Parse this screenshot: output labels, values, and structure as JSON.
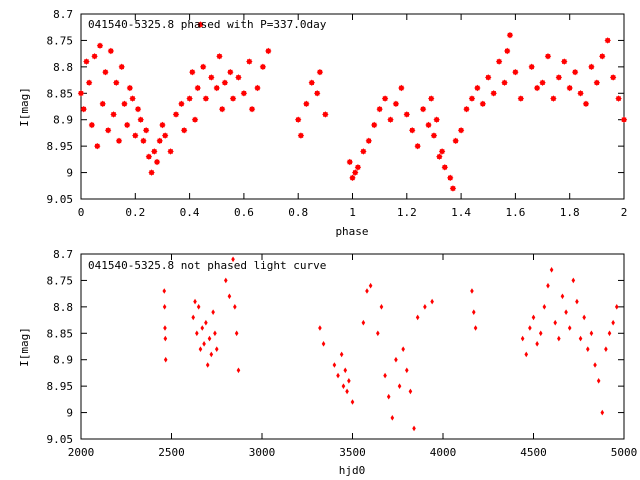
{
  "chart_data": [
    {
      "type": "scatter",
      "title": "041540-5325.8 phased with P=337.0day",
      "xlabel": "phase",
      "ylabel": "I[mag]",
      "xlim": [
        0,
        2
      ],
      "ylim": [
        9.05,
        8.7
      ],
      "y_inverted": true,
      "xticks": [
        "0",
        "0.2",
        "0.4",
        "0.6",
        "0.8",
        "1",
        "1.2",
        "1.4",
        "1.6",
        "1.8",
        "2"
      ],
      "yticks": [
        "8.7",
        "8.75",
        "8.8",
        "8.85",
        "8.9",
        "8.95",
        "9",
        "9.05"
      ],
      "marker": "star",
      "color": "#ff0000",
      "x": [
        0.0,
        0.01,
        0.02,
        0.03,
        0.04,
        0.05,
        0.06,
        0.07,
        0.08,
        0.09,
        0.1,
        0.11,
        0.12,
        0.13,
        0.14,
        0.15,
        0.16,
        0.17,
        0.18,
        0.19,
        0.2,
        0.21,
        0.22,
        0.23,
        0.24,
        0.25,
        0.26,
        0.27,
        0.28,
        0.29,
        0.3,
        0.31,
        0.33,
        0.35,
        0.37,
        0.38,
        0.4,
        0.41,
        0.42,
        0.43,
        0.44,
        0.45,
        0.46,
        0.48,
        0.5,
        0.51,
        0.52,
        0.53,
        0.55,
        0.56,
        0.58,
        0.6,
        0.62,
        0.63,
        0.65,
        0.67,
        0.69,
        0.8,
        0.81,
        0.83,
        0.85,
        0.87,
        0.88,
        0.9,
        0.99,
        1.0,
        1.01,
        1.02,
        1.04,
        1.06,
        1.08,
        1.1,
        1.12,
        1.14,
        1.16,
        1.18,
        1.2,
        1.22,
        1.24,
        1.26,
        1.28,
        1.29,
        1.3,
        1.31,
        1.32,
        1.33,
        1.34,
        1.36,
        1.37,
        1.38,
        1.4,
        1.42,
        1.44,
        1.46,
        1.48,
        1.5,
        1.52,
        1.54,
        1.56,
        1.57,
        1.58,
        1.6,
        1.62,
        1.66,
        1.68,
        1.7,
        1.72,
        1.74,
        1.76,
        1.78,
        1.8,
        1.82,
        1.84,
        1.86,
        1.88,
        1.9,
        1.92,
        1.94,
        1.96,
        1.98,
        2.0
      ],
      "y": [
        8.85,
        8.88,
        8.79,
        8.83,
        8.91,
        8.78,
        8.95,
        8.76,
        8.87,
        8.81,
        8.92,
        8.77,
        8.89,
        8.83,
        8.94,
        8.8,
        8.87,
        8.91,
        8.84,
        8.86,
        8.93,
        8.88,
        8.9,
        8.94,
        8.92,
        8.97,
        9.0,
        8.96,
        8.98,
        8.94,
        8.91,
        8.93,
        8.96,
        8.89,
        8.87,
        8.92,
        8.86,
        8.81,
        8.9,
        8.84,
        8.72,
        8.8,
        8.86,
        8.82,
        8.84,
        8.78,
        8.88,
        8.83,
        8.81,
        8.86,
        8.82,
        8.85,
        8.79,
        8.88,
        8.84,
        8.8,
        8.77,
        8.9,
        8.93,
        8.87,
        8.83,
        8.85,
        8.81,
        8.89,
        8.98,
        9.01,
        9.0,
        8.99,
        8.96,
        8.94,
        8.91,
        8.88,
        8.86,
        8.9,
        8.87,
        8.84,
        8.89,
        8.92,
        8.95,
        8.88,
        8.91,
        8.86,
        8.93,
        8.9,
        8.97,
        8.96,
        8.99,
        9.01,
        9.03,
        8.94,
        8.92,
        8.88,
        8.86,
        8.84,
        8.87,
        8.82,
        8.85,
        8.79,
        8.83,
        8.77,
        8.74,
        8.81,
        8.86,
        8.8,
        8.84,
        8.83,
        8.78,
        8.86,
        8.82,
        8.79,
        8.84,
        8.81,
        8.85,
        8.87,
        8.8,
        8.83,
        8.78,
        8.75,
        8.82,
        8.86,
        8.9
      ]
    },
    {
      "type": "scatter",
      "title": "041540-5325.8 not phased light curve",
      "xlabel": "hjd0",
      "ylabel": "I[mag]",
      "xlim": [
        2000,
        5000
      ],
      "ylim": [
        9.05,
        8.7
      ],
      "y_inverted": true,
      "xticks": [
        "2000",
        "2500",
        "3000",
        "3500",
        "4000",
        "4500",
        "5000"
      ],
      "yticks": [
        "8.7",
        "8.75",
        "8.8",
        "8.85",
        "8.9",
        "8.95",
        "9",
        "9.05"
      ],
      "marker": "diamond",
      "color": "#ff0000",
      "x": [
        2460,
        2462,
        2464,
        2466,
        2468,
        2620,
        2630,
        2640,
        2650,
        2660,
        2670,
        2680,
        2690,
        2700,
        2710,
        2720,
        2730,
        2740,
        2750,
        2800,
        2820,
        2840,
        2850,
        2860,
        2870,
        3320,
        3340,
        3400,
        3420,
        3440,
        3450,
        3460,
        3470,
        3480,
        3500,
        3560,
        3580,
        3600,
        3640,
        3660,
        3680,
        3700,
        3720,
        3740,
        3760,
        3780,
        3800,
        3820,
        3840,
        3860,
        3900,
        3940,
        4160,
        4170,
        4180,
        4440,
        4460,
        4480,
        4500,
        4520,
        4540,
        4560,
        4580,
        4600,
        4620,
        4640,
        4660,
        4680,
        4700,
        4720,
        4740,
        4760,
        4780,
        4800,
        4820,
        4840,
        4860,
        4880,
        4900,
        4920,
        4940,
        4960
      ],
      "y": [
        8.77,
        8.8,
        8.84,
        8.86,
        8.9,
        8.82,
        8.79,
        8.85,
        8.8,
        8.88,
        8.84,
        8.87,
        8.83,
        8.91,
        8.86,
        8.89,
        8.81,
        8.85,
        8.88,
        8.75,
        8.78,
        8.71,
        8.8,
        8.85,
        8.92,
        8.84,
        8.87,
        8.91,
        8.93,
        8.89,
        8.95,
        8.92,
        8.96,
        8.94,
        8.98,
        8.83,
        8.77,
        8.76,
        8.85,
        8.8,
        8.93,
        8.97,
        9.01,
        8.9,
        8.95,
        8.88,
        8.92,
        8.96,
        9.03,
        8.82,
        8.8,
        8.79,
        8.77,
        8.81,
        8.84,
        8.86,
        8.89,
        8.84,
        8.82,
        8.87,
        8.85,
        8.8,
        8.76,
        8.73,
        8.83,
        8.86,
        8.78,
        8.81,
        8.84,
        8.75,
        8.79,
        8.86,
        8.82,
        8.88,
        8.85,
        8.91,
        8.94,
        9.0,
        8.88,
        8.85,
        8.83,
        8.8
      ]
    }
  ]
}
